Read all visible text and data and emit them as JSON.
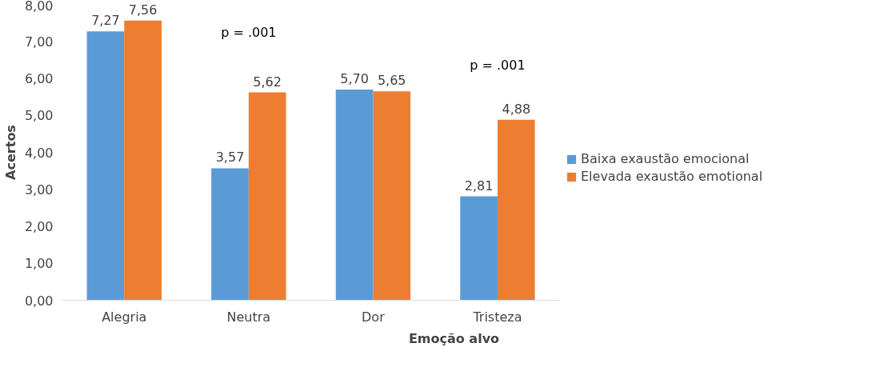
{
  "chart_data": {
    "type": "bar",
    "xlabel": "Emoção alvo",
    "ylabel": "Acertos",
    "categories": [
      "Alegria",
      "Neutra",
      "Dor",
      "Tristeza"
    ],
    "series": [
      {
        "name": "Baixa exaustão emocional",
        "color": "#5b9bd5",
        "values": [
          7.27,
          3.57,
          5.7,
          2.81
        ],
        "value_labels": [
          "7,27",
          "3,57",
          "5,70",
          "2,81"
        ]
      },
      {
        "name": "Elevada exaustão emotional",
        "color": "#ed7d31",
        "values": [
          7.56,
          5.62,
          5.65,
          4.88
        ],
        "value_labels": [
          "7,56",
          "5,62",
          "5,65",
          "4,88"
        ]
      }
    ],
    "ylim": [
      0,
      8
    ],
    "yticks": [
      {
        "value": 0,
        "label": "0,00"
      },
      {
        "value": 1,
        "label": "1,00"
      },
      {
        "value": 2,
        "label": "2,00"
      },
      {
        "value": 3,
        "label": "3,00"
      },
      {
        "value": 4,
        "label": "4,00"
      },
      {
        "value": 5,
        "label": "5,00"
      },
      {
        "value": 6,
        "label": "6,00"
      },
      {
        "value": 7,
        "label": "7,00"
      },
      {
        "value": 8,
        "label": "8,00"
      }
    ],
    "annotations": [
      "p = .001",
      "p = .001"
    ],
    "grid": false,
    "legend": "right"
  }
}
